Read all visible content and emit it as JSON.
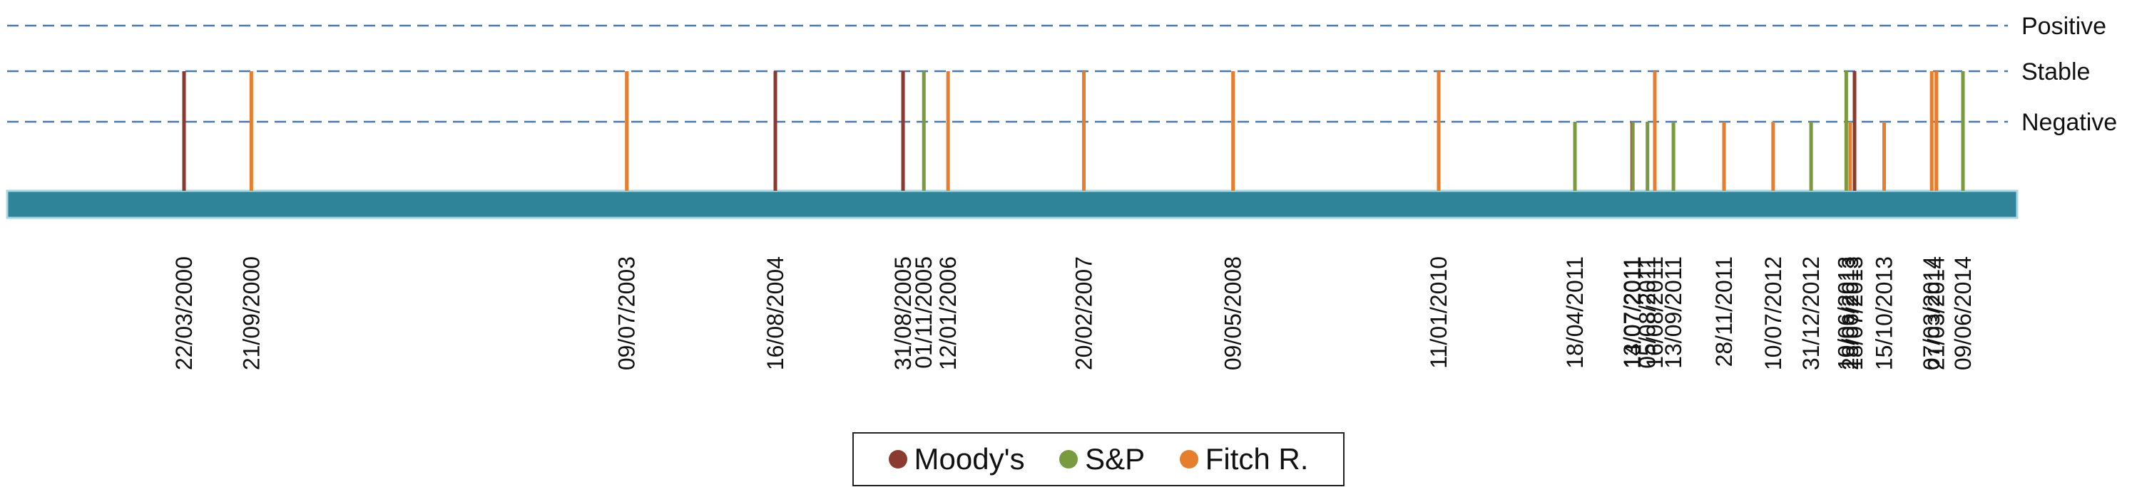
{
  "chart_data": {
    "type": "timeline",
    "title": "",
    "xlabel": "",
    "ylabel": "",
    "levels": [
      "Positive",
      "Stable",
      "Negative"
    ],
    "series": [
      {
        "name": "Moody's",
        "color": "#8B3A2F"
      },
      {
        "name": "S&P",
        "color": "#7A9A3F"
      },
      {
        "name": "Fitch R.",
        "color": "#E67E2E"
      }
    ],
    "events": [
      {
        "date": "22/03/2000",
        "agency": "Moody's",
        "outlook": "Stable"
      },
      {
        "date": "21/09/2000",
        "agency": "Fitch R.",
        "outlook": "Stable"
      },
      {
        "date": "09/07/2003",
        "agency": "Fitch R.",
        "outlook": "Stable"
      },
      {
        "date": "16/08/2004",
        "agency": "Moody's",
        "outlook": "Stable"
      },
      {
        "date": "31/08/2005",
        "agency": "Moody's",
        "outlook": "Stable"
      },
      {
        "date": "01/11/2005",
        "agency": "S&P",
        "outlook": "Stable"
      },
      {
        "date": "12/01/2006",
        "agency": "Fitch R.",
        "outlook": "Stable"
      },
      {
        "date": "20/02/2007",
        "agency": "Fitch R.",
        "outlook": "Stable"
      },
      {
        "date": "09/05/2008",
        "agency": "Fitch R.",
        "outlook": "Stable"
      },
      {
        "date": "11/01/2010",
        "agency": "Fitch R.",
        "outlook": "Stable"
      },
      {
        "date": "18/04/2011",
        "agency": "S&P",
        "outlook": "Negative"
      },
      {
        "date": "13/07/2011",
        "agency": "Moody's",
        "outlook": "Negative"
      },
      {
        "date": "14/07/2011",
        "agency": "S&P",
        "outlook": "Negative"
      },
      {
        "date": "05/08/2011",
        "agency": "S&P",
        "outlook": "Negative"
      },
      {
        "date": "16/08/2011",
        "agency": "Fitch R.",
        "outlook": "Stable"
      },
      {
        "date": "13/09/2011",
        "agency": "S&P",
        "outlook": "Negative"
      },
      {
        "date": "28/11/2011",
        "agency": "Fitch R.",
        "outlook": "Negative"
      },
      {
        "date": "10/07/2012",
        "agency": "Fitch R.",
        "outlook": "Negative"
      },
      {
        "date": "31/12/2012",
        "agency": "S&P",
        "outlook": "Negative"
      },
      {
        "date": "10/06/2013",
        "agency": "S&P",
        "outlook": "Stable"
      },
      {
        "date": "28/06/2013",
        "agency": "Fitch R.",
        "outlook": "Negative"
      },
      {
        "date": "18/07/2013",
        "agency": "Moody's",
        "outlook": "Stable"
      },
      {
        "date": "15/10/2013",
        "agency": "Fitch R.",
        "outlook": "Negative"
      },
      {
        "date": "07/03/2014",
        "agency": "Fitch R.",
        "outlook": "Stable"
      },
      {
        "date": "21/03/2014",
        "agency": "Fitch R.",
        "outlook": "Stable"
      },
      {
        "date": "09/06/2014",
        "agency": "S&P",
        "outlook": "Stable"
      }
    ],
    "grid": true,
    "legend_position": "bottom"
  }
}
